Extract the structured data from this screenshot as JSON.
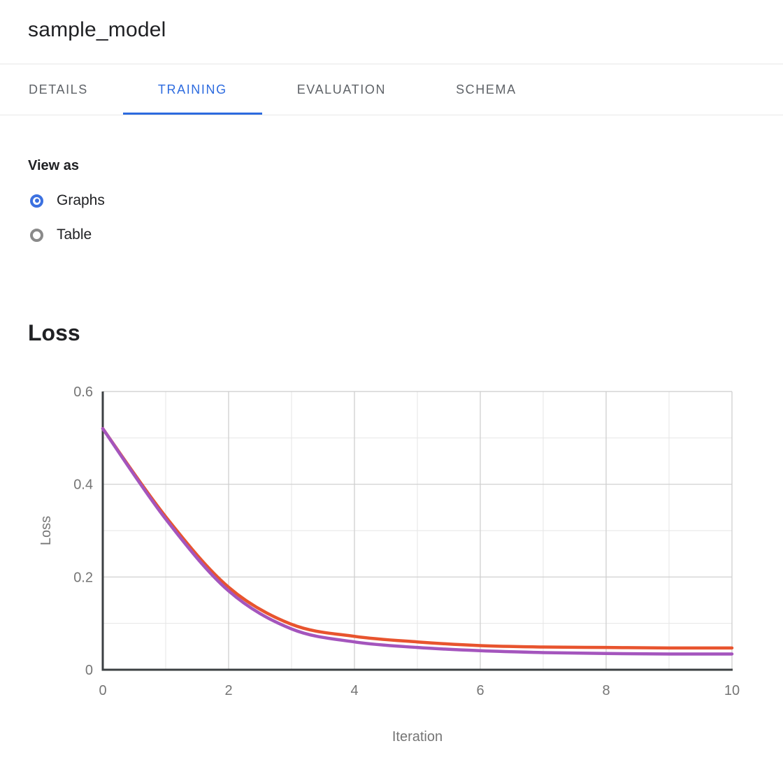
{
  "header": {
    "title": "sample_model"
  },
  "tabs": [
    {
      "label": "DETAILS",
      "active": false
    },
    {
      "label": "TRAINING",
      "active": true
    },
    {
      "label": "EVALUATION",
      "active": false
    },
    {
      "label": "SCHEMA",
      "active": false
    }
  ],
  "view_as": {
    "label": "View as",
    "options": [
      {
        "label": "Graphs",
        "selected": true
      },
      {
        "label": "Table",
        "selected": false
      }
    ]
  },
  "section": {
    "heading": "Loss"
  },
  "colors": {
    "tab_accent": "#2d6bdf",
    "radio_selected": "#3c71e0",
    "radio_unselected": "#8a8a8a",
    "axis_line": "#3c4043",
    "tick_text": "#757575",
    "grid_major": "#cccccc",
    "grid_minor": "#e6e6e6",
    "series_orange": "#e8542e",
    "series_purple": "#a455bd"
  },
  "chart_data": {
    "type": "line",
    "title": "Loss",
    "xlabel": "Iteration",
    "ylabel": "Loss",
    "xlim": [
      0,
      10
    ],
    "ylim": [
      0,
      0.6
    ],
    "x_major_ticks": [
      0,
      2,
      4,
      6,
      8,
      10
    ],
    "x_minor_step": 1,
    "y_major_ticks": [
      0,
      0.2,
      0.4,
      0.6
    ],
    "y_minor_step": 0.1,
    "grid": true,
    "legend_position": "none",
    "x": [
      0,
      1,
      2,
      3,
      4,
      5,
      6,
      7,
      8,
      9,
      10
    ],
    "series": [
      {
        "name": "orange",
        "color": "#e8542e",
        "values": [
          0.52,
          0.33,
          0.178,
          0.098,
          0.072,
          0.06,
          0.052,
          0.049,
          0.048,
          0.047,
          0.047
        ]
      },
      {
        "name": "purple",
        "color": "#a455bd",
        "values": [
          0.52,
          0.325,
          0.17,
          0.088,
          0.06,
          0.048,
          0.041,
          0.037,
          0.035,
          0.034,
          0.034
        ]
      }
    ]
  }
}
